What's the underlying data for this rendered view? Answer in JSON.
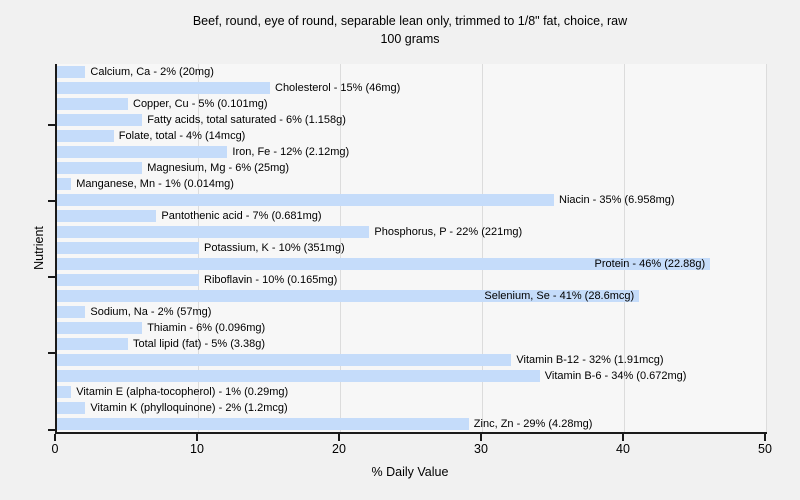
{
  "chart": {
    "title_line1": "Beef, round, eye of round, separable lean only, trimmed to 1/8\" fat, choice, raw",
    "title_line2": "100 grams",
    "xlabel": "% Daily Value",
    "ylabel": "Nutrient"
  },
  "chart_data": {
    "type": "bar",
    "orientation": "horizontal",
    "title": "Beef, round, eye of round, separable lean only, trimmed to 1/8\" fat, choice, raw",
    "subtitle": "100 grams",
    "xlabel": "% Daily Value",
    "ylabel": "Nutrient",
    "xlim": [
      0,
      50
    ],
    "xticks": [
      0,
      10,
      20,
      30,
      40,
      50
    ],
    "grid": true,
    "bar_color": "#c5dcfa",
    "plot_bg": "#f7f7f7",
    "page_bg": "#f1f1f1",
    "bars": [
      {
        "nutrient": "Calcium, Ca",
        "pct": 2,
        "amount": "20mg",
        "label": "Calcium, Ca - 2% (20mg)",
        "label_inside": false
      },
      {
        "nutrient": "Cholesterol",
        "pct": 15,
        "amount": "46mg",
        "label": "Cholesterol - 15% (46mg)",
        "label_inside": false
      },
      {
        "nutrient": "Copper, Cu",
        "pct": 5,
        "amount": "0.101mg",
        "label": "Copper, Cu - 5% (0.101mg)",
        "label_inside": false
      },
      {
        "nutrient": "Fatty acids, total saturated",
        "pct": 6,
        "amount": "1.158g",
        "label": "Fatty acids, total saturated - 6% (1.158g)",
        "label_inside": false
      },
      {
        "nutrient": "Folate, total",
        "pct": 4,
        "amount": "14mcg",
        "label": "Folate, total - 4% (14mcg)",
        "label_inside": false
      },
      {
        "nutrient": "Iron, Fe",
        "pct": 12,
        "amount": "2.12mg",
        "label": "Iron, Fe - 12% (2.12mg)",
        "label_inside": false
      },
      {
        "nutrient": "Magnesium, Mg",
        "pct": 6,
        "amount": "25mg",
        "label": "Magnesium, Mg - 6% (25mg)",
        "label_inside": false
      },
      {
        "nutrient": "Manganese, Mn",
        "pct": 1,
        "amount": "0.014mg",
        "label": "Manganese, Mn - 1% (0.014mg)",
        "label_inside": false
      },
      {
        "nutrient": "Niacin",
        "pct": 35,
        "amount": "6.958mg",
        "label": "Niacin - 35% (6.958mg)",
        "label_inside": false
      },
      {
        "nutrient": "Pantothenic acid",
        "pct": 7,
        "amount": "0.681mg",
        "label": "Pantothenic acid - 7% (0.681mg)",
        "label_inside": false
      },
      {
        "nutrient": "Phosphorus, P",
        "pct": 22,
        "amount": "221mg",
        "label": "Phosphorus, P - 22% (221mg)",
        "label_inside": false
      },
      {
        "nutrient": "Potassium, K",
        "pct": 10,
        "amount": "351mg",
        "label": "Potassium, K - 10% (351mg)",
        "label_inside": false
      },
      {
        "nutrient": "Protein",
        "pct": 46,
        "amount": "22.88g",
        "label": "Protein - 46% (22.88g)",
        "label_inside": true
      },
      {
        "nutrient": "Riboflavin",
        "pct": 10,
        "amount": "0.165mg",
        "label": "Riboflavin - 10% (0.165mg)",
        "label_inside": false
      },
      {
        "nutrient": "Selenium, Se",
        "pct": 41,
        "amount": "28.6mcg",
        "label": "Selenium, Se - 41% (28.6mcg)",
        "label_inside": true
      },
      {
        "nutrient": "Sodium, Na",
        "pct": 2,
        "amount": "57mg",
        "label": "Sodium, Na - 2% (57mg)",
        "label_inside": false
      },
      {
        "nutrient": "Thiamin",
        "pct": 6,
        "amount": "0.096mg",
        "label": "Thiamin - 6% (0.096mg)",
        "label_inside": false
      },
      {
        "nutrient": "Total lipid (fat)",
        "pct": 5,
        "amount": "3.38g",
        "label": "Total lipid (fat) - 5% (3.38g)",
        "label_inside": false
      },
      {
        "nutrient": "Vitamin B-12",
        "pct": 32,
        "amount": "1.91mcg",
        "label": "Vitamin B-12 - 32% (1.91mcg)",
        "label_inside": false
      },
      {
        "nutrient": "Vitamin B-6",
        "pct": 34,
        "amount": "0.672mg",
        "label": "Vitamin B-6 - 34% (0.672mg)",
        "label_inside": false
      },
      {
        "nutrient": "Vitamin E (alpha-tocopherol)",
        "pct": 1,
        "amount": "0.29mg",
        "label": "Vitamin E (alpha-tocopherol) - 1% (0.29mg)",
        "label_inside": false
      },
      {
        "nutrient": "Vitamin K (phylloquinone)",
        "pct": 2,
        "amount": "1.2mcg",
        "label": "Vitamin K (phylloquinone) - 2% (1.2mcg)",
        "label_inside": false
      },
      {
        "nutrient": "Zinc, Zn",
        "pct": 29,
        "amount": "4.28mg",
        "label": "Zinc, Zn - 29% (4.28mg)",
        "label_inside": false
      }
    ]
  }
}
